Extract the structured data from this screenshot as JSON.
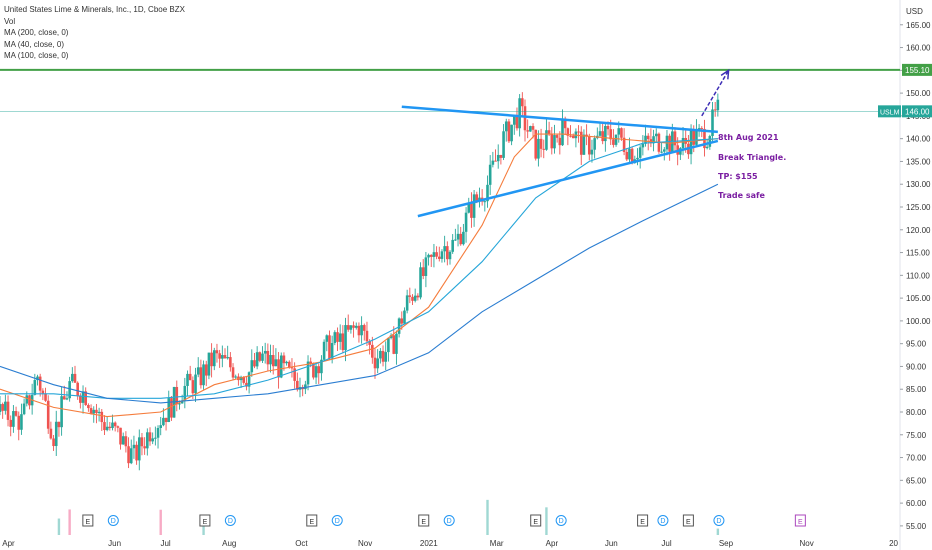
{
  "header": {
    "title": "United States Lime & Minerals, Inc., 1D, Cboe BZX",
    "vol_label": "Vol",
    "ma_labels": [
      "MA (200, close, 0)",
      "MA (40, close, 0)",
      "MA (100, close, 0)"
    ]
  },
  "annotations": [
    "8th Aug 2021",
    "Break Triangle.",
    "TP: $155",
    "Trade safe"
  ],
  "chart_data": {
    "type": "candlestick",
    "currency": "USD",
    "ylim": [
      53,
      170
    ],
    "y_ticks": [
      55,
      60,
      65,
      70,
      75,
      80,
      85,
      90,
      95,
      100,
      105,
      110,
      115,
      120,
      125,
      130,
      135,
      140,
      145,
      150,
      155,
      160,
      165
    ],
    "x_tick_labels": [
      "Apr",
      "Jun",
      "Jul",
      "Aug",
      "Oct",
      "Nov",
      "2021",
      "Mar",
      "Apr",
      "Jun",
      "Jul",
      "Sep",
      "Nov",
      "20"
    ],
    "price_labels": [
      {
        "value": 155.1,
        "text": "155.10",
        "color": "#43a047"
      },
      {
        "value": 146.0,
        "text": "146.00",
        "color": "#26a69a",
        "symbol": "USLM"
      }
    ],
    "target_level": 155.1,
    "last_price": 146.0,
    "price_path": [
      [
        0,
        80
      ],
      [
        4,
        78
      ],
      [
        7,
        88
      ],
      [
        10,
        75
      ],
      [
        13,
        86
      ],
      [
        16,
        84
      ],
      [
        19,
        78
      ],
      [
        22,
        75
      ],
      [
        25,
        70
      ],
      [
        28,
        76
      ],
      [
        31,
        80
      ],
      [
        34,
        85
      ],
      [
        37,
        87
      ],
      [
        40,
        92
      ],
      [
        43,
        90
      ],
      [
        46,
        88
      ],
      [
        49,
        92
      ],
      [
        52,
        90
      ],
      [
        55,
        87
      ],
      [
        58,
        89
      ],
      [
        61,
        94
      ],
      [
        64,
        96
      ],
      [
        67,
        99
      ],
      [
        70,
        92
      ],
      [
        73,
        94
      ],
      [
        76,
        104
      ],
      [
        79,
        110
      ],
      [
        82,
        116
      ],
      [
        85,
        117
      ],
      [
        88,
        125
      ],
      [
        91,
        130
      ],
      [
        94,
        140
      ],
      [
        97,
        146
      ],
      [
        100,
        138
      ],
      [
        103,
        140
      ],
      [
        106,
        143
      ],
      [
        109,
        138
      ],
      [
        112,
        140
      ],
      [
        115,
        141
      ],
      [
        118,
        137
      ],
      [
        121,
        139
      ],
      [
        124,
        140
      ],
      [
        127,
        138
      ],
      [
        129,
        140
      ],
      [
        132,
        141
      ],
      [
        134,
        146
      ]
    ],
    "volume_range": [
      12,
      70
    ],
    "series": [
      {
        "name": "MA (40, close, 0)",
        "color": "#f57c3c",
        "points": [
          [
            0,
            85
          ],
          [
            10,
            81
          ],
          [
            20,
            79
          ],
          [
            30,
            80
          ],
          [
            40,
            86
          ],
          [
            50,
            89
          ],
          [
            60,
            91
          ],
          [
            70,
            94
          ],
          [
            80,
            103
          ],
          [
            90,
            121
          ],
          [
            96,
            136
          ],
          [
            100,
            141
          ],
          [
            105,
            141
          ],
          [
            115,
            140
          ],
          [
            125,
            139
          ],
          [
            134,
            140
          ]
        ]
      },
      {
        "name": "MA (100, close, 0)",
        "color": "#26a6d9",
        "points": [
          [
            0,
            84
          ],
          [
            10,
            84
          ],
          [
            20,
            83
          ],
          [
            30,
            83
          ],
          [
            40,
            84
          ],
          [
            50,
            87
          ],
          [
            60,
            91
          ],
          [
            70,
            96
          ],
          [
            80,
            102
          ],
          [
            90,
            113
          ],
          [
            100,
            127
          ],
          [
            110,
            135
          ],
          [
            120,
            139
          ],
          [
            134,
            140
          ]
        ]
      },
      {
        "name": "MA (200, close, 0)",
        "color": "#2a7dd1",
        "points": [
          [
            0,
            90
          ],
          [
            10,
            86
          ],
          [
            20,
            83
          ],
          [
            30,
            82
          ],
          [
            40,
            83
          ],
          [
            50,
            84
          ],
          [
            60,
            86
          ],
          [
            70,
            88
          ],
          [
            80,
            93
          ],
          [
            90,
            102
          ],
          [
            100,
            109
          ],
          [
            110,
            116
          ],
          [
            120,
            122
          ],
          [
            134,
            130
          ]
        ]
      }
    ],
    "triangle": {
      "upper": [
        [
          75,
          147
        ],
        [
          134,
          141.5
        ]
      ],
      "lower": [
        [
          78,
          123
        ],
        [
          134,
          139.5
        ]
      ],
      "color": "#2196f3"
    },
    "arrow": {
      "from": [
        131,
        145
      ],
      "to": [
        136,
        155
      ],
      "color": "#3d2fb6"
    },
    "event_markers": [
      {
        "label": "E",
        "x_day": 12
      },
      {
        "label": "D",
        "x_day": 17
      },
      {
        "label": "E",
        "x_day": 35
      },
      {
        "label": "D",
        "x_day": 40
      },
      {
        "label": "E",
        "x_day": 56
      },
      {
        "label": "D",
        "x_day": 61
      },
      {
        "label": "E",
        "x_day": 78
      },
      {
        "label": "D",
        "x_day": 83
      },
      {
        "label": "E",
        "x_day": 100
      },
      {
        "label": "D",
        "x_day": 105
      },
      {
        "label": "E",
        "x_day": 121
      },
      {
        "label": "D",
        "x_day": 125
      },
      {
        "label": "E",
        "x_day": 130
      },
      {
        "label": "D",
        "x_day": 136
      },
      {
        "label": "E",
        "x_day": 152
      }
    ],
    "x_range_days": [
      0,
      168
    ]
  }
}
